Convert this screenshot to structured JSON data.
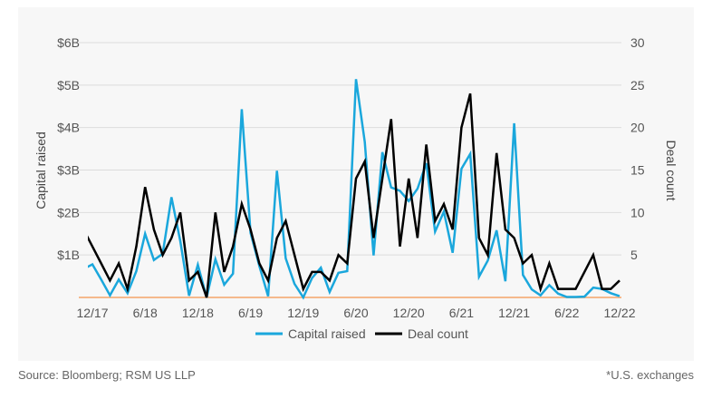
{
  "chart_data": {
    "type": "line",
    "title": "",
    "x": [
      "11/17",
      "12/17",
      "1/18",
      "2/18",
      "3/18",
      "4/18",
      "5/18",
      "6/18",
      "7/18",
      "8/18",
      "9/18",
      "10/18",
      "11/18",
      "12/18",
      "1/19",
      "2/19",
      "3/19",
      "4/19",
      "5/19",
      "6/19",
      "7/19",
      "8/19",
      "9/19",
      "10/19",
      "11/19",
      "12/19",
      "1/20",
      "2/20",
      "3/20",
      "4/20",
      "5/20",
      "6/20",
      "7/20",
      "8/20",
      "9/20",
      "10/20",
      "11/20",
      "12/20",
      "1/21",
      "2/21",
      "3/21",
      "4/21",
      "5/21",
      "6/21",
      "7/21",
      "8/21",
      "9/21",
      "10/21",
      "11/21",
      "12/21",
      "1/22",
      "2/22",
      "3/22",
      "4/22",
      "5/22",
      "6/22",
      "7/22",
      "8/22",
      "9/22",
      "10/22",
      "11/22",
      "12/22"
    ],
    "x_tick_labels": [
      "12/17",
      "6/18",
      "12/18",
      "6/19",
      "12/19",
      "6/20",
      "12/20",
      "6/21",
      "12/21",
      "6/22",
      "12/22"
    ],
    "y_left": {
      "label": "Capital raised",
      "ticks": [
        "$1B",
        "$2B",
        "$3B",
        "$4B",
        "$5B",
        "$6B"
      ],
      "tick_values": [
        1,
        2,
        3,
        4,
        5,
        6
      ],
      "range": [
        0,
        6
      ],
      "unit": "$B"
    },
    "y_right": {
      "label": "Deal count",
      "ticks": [
        "5",
        "10",
        "15",
        "20",
        "25",
        "30"
      ],
      "tick_values": [
        5,
        10,
        15,
        20,
        25,
        30
      ],
      "range": [
        0,
        30
      ]
    },
    "grid": true,
    "legend": "bottom",
    "series": [
      {
        "name": "Capital raised",
        "axis": "left",
        "color": "#1aa7dc",
        "values": [
          0.67,
          0.78,
          0.42,
          0.05,
          0.42,
          0.1,
          0.62,
          1.5,
          0.88,
          1.03,
          2.36,
          1.33,
          0.04,
          0.77,
          0,
          0.9,
          0.3,
          0.56,
          4.43,
          1.52,
          0.74,
          0.03,
          2.98,
          0.92,
          0.32,
          0,
          0.46,
          0.7,
          0.13,
          0.58,
          0.62,
          5.14,
          3.66,
          0.99,
          3.42,
          2.59,
          2.51,
          2.27,
          2.56,
          3.16,
          1.55,
          2.02,
          1.05,
          3.03,
          3.38,
          0.49,
          0.87,
          1.58,
          0.38,
          4.1,
          0.53,
          0.19,
          0.05,
          0.29,
          0.09,
          0.01,
          0.01,
          0.02,
          0.23,
          0.2,
          0.1,
          0.03
        ]
      },
      {
        "name": "Deal count",
        "axis": "right",
        "color": "#000000",
        "values": [
          8,
          6,
          4,
          2,
          4,
          1,
          6,
          13,
          8,
          5,
          7,
          10,
          2,
          3,
          0,
          10,
          3,
          6,
          11,
          8,
          4,
          2,
          7,
          9,
          5,
          1,
          3,
          3,
          2,
          5,
          4,
          14,
          16,
          7,
          14,
          21,
          6,
          14,
          7,
          18,
          9,
          11,
          8,
          20,
          24,
          7,
          5,
          17,
          8,
          7,
          4,
          5,
          1,
          4,
          1,
          1,
          1,
          3,
          5,
          1,
          1,
          2
        ]
      }
    ],
    "baseline_color": "#f5b98c"
  },
  "footer": {
    "source": "Source: Bloomberg; RSM US LLP",
    "note": "*U.S. exchanges"
  }
}
